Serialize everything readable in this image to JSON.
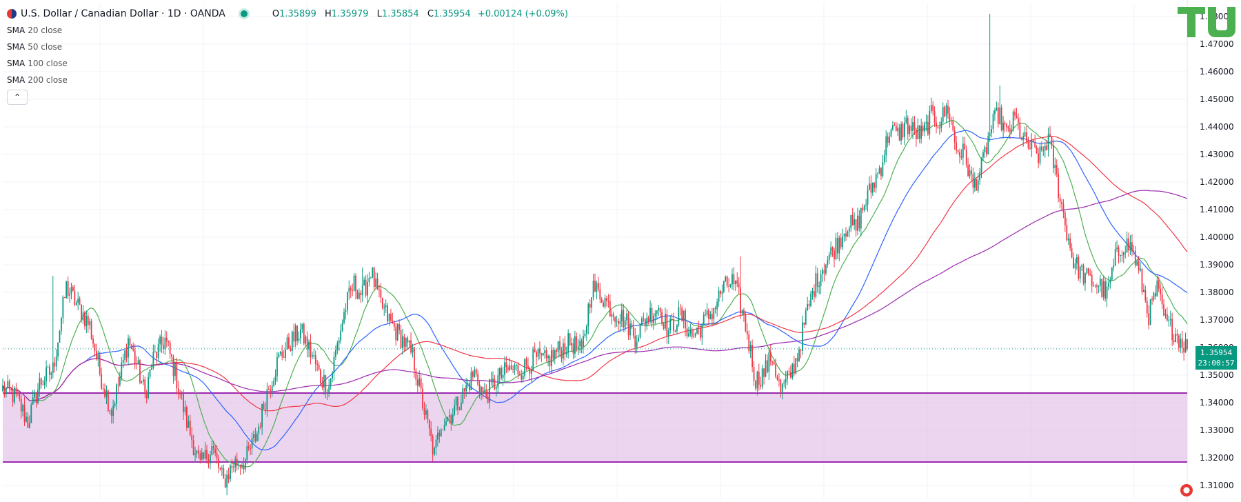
{
  "header": {
    "symbol_title": "U.S. Dollar / Canadian Dollar · 1D · OANDA",
    "ohlc": {
      "o_label": "O",
      "o": "1.35899",
      "h_label": "H",
      "h": "1.35979",
      "l_label": "L",
      "l": "1.35854",
      "c_label": "C",
      "c": "1.35954",
      "change": "+0.00124 (+0.09%)"
    }
  },
  "indicators": [
    {
      "name": "SMA",
      "params": "20 close",
      "color": "#4caf50"
    },
    {
      "name": "SMA",
      "params": "50 close",
      "color": "#2962ff"
    },
    {
      "name": "SMA",
      "params": "100 close",
      "color": "#f23645"
    },
    {
      "name": "SMA",
      "params": "200 close",
      "color": "#9c27b0"
    }
  ],
  "colors": {
    "up": "#089981",
    "down": "#f23645",
    "zone": "#9c27b0"
  },
  "last_price": {
    "value": "1.35954",
    "countdown": "23:00:57"
  },
  "icons": [
    "chevron-up-icon",
    "tv-logo-icon",
    "flag-icon"
  ],
  "chart_data": {
    "type": "candlestick",
    "ylim": [
      1.305,
      1.485
    ],
    "yticks": [
      "1.31000",
      "1.32000",
      "1.33000",
      "1.34000",
      "1.35000",
      "1.36000",
      "1.37000",
      "1.38000",
      "1.39000",
      "1.40000",
      "1.41000",
      "1.42000",
      "1.43000",
      "1.44000",
      "1.45000",
      "1.46000",
      "1.47000",
      "1.48000"
    ],
    "close_path": [
      [
        0,
        1.345
      ],
      [
        8,
        1.342
      ],
      [
        15,
        1.333
      ],
      [
        22,
        1.347
      ],
      [
        30,
        1.352
      ],
      [
        38,
        1.382
      ],
      [
        45,
        1.375
      ],
      [
        52,
        1.368
      ],
      [
        58,
        1.351
      ],
      [
        65,
        1.337
      ],
      [
        70,
        1.349
      ],
      [
        75,
        1.363
      ],
      [
        80,
        1.354
      ],
      [
        85,
        1.343
      ],
      [
        90,
        1.356
      ],
      [
        97,
        1.363
      ],
      [
        103,
        1.351
      ],
      [
        110,
        1.333
      ],
      [
        118,
        1.317
      ],
      [
        125,
        1.324
      ],
      [
        132,
        1.311
      ],
      [
        138,
        1.318
      ],
      [
        145,
        1.319
      ],
      [
        152,
        1.329
      ],
      [
        158,
        1.344
      ],
      [
        165,
        1.356
      ],
      [
        172,
        1.362
      ],
      [
        178,
        1.366
      ],
      [
        185,
        1.357
      ],
      [
        190,
        1.349
      ],
      [
        195,
        1.346
      ],
      [
        200,
        1.361
      ],
      [
        205,
        1.375
      ],
      [
        210,
        1.383
      ],
      [
        215,
        1.379
      ],
      [
        220,
        1.388
      ],
      [
        225,
        1.377
      ],
      [
        230,
        1.371
      ],
      [
        235,
        1.366
      ],
      [
        240,
        1.362
      ],
      [
        245,
        1.357
      ],
      [
        252,
        1.337
      ],
      [
        258,
        1.321
      ],
      [
        262,
        1.333
      ],
      [
        268,
        1.336
      ],
      [
        275,
        1.343
      ],
      [
        282,
        1.351
      ],
      [
        288,
        1.342
      ],
      [
        295,
        1.348
      ],
      [
        302,
        1.352
      ],
      [
        310,
        1.352
      ],
      [
        318,
        1.356
      ],
      [
        325,
        1.355
      ],
      [
        332,
        1.359
      ],
      [
        340,
        1.362
      ],
      [
        346,
        1.358
      ],
      [
        352,
        1.382
      ],
      [
        358,
        1.379
      ],
      [
        365,
        1.373
      ],
      [
        372,
        1.37
      ],
      [
        378,
        1.364
      ],
      [
        385,
        1.371
      ],
      [
        392,
        1.375
      ],
      [
        398,
        1.366
      ],
      [
        405,
        1.372
      ],
      [
        412,
        1.364
      ],
      [
        418,
        1.368
      ],
      [
        425,
        1.374
      ],
      [
        430,
        1.381
      ],
      [
        436,
        1.384
      ],
      [
        440,
        1.378
      ],
      [
        445,
        1.365
      ],
      [
        450,
        1.348
      ],
      [
        455,
        1.351
      ],
      [
        460,
        1.357
      ],
      [
        465,
        1.344
      ],
      [
        470,
        1.349
      ],
      [
        475,
        1.357
      ],
      [
        480,
        1.371
      ],
      [
        485,
        1.382
      ],
      [
        490,
        1.389
      ],
      [
        495,
        1.394
      ],
      [
        500,
        1.399
      ],
      [
        505,
        1.405
      ],
      [
        510,
        1.403
      ],
      [
        515,
        1.412
      ],
      [
        520,
        1.419
      ],
      [
        525,
        1.426
      ],
      [
        530,
        1.439
      ],
      [
        535,
        1.437
      ],
      [
        540,
        1.441
      ],
      [
        545,
        1.438
      ],
      [
        550,
        1.437
      ],
      [
        555,
        1.444
      ],
      [
        560,
        1.442
      ],
      [
        565,
        1.447
      ],
      [
        570,
        1.432
      ],
      [
        575,
        1.43
      ],
      [
        580,
        1.418
      ],
      [
        585,
        1.425
      ],
      [
        590,
        1.438
      ],
      [
        595,
        1.445
      ],
      [
        600,
        1.437
      ],
      [
        605,
        1.443
      ],
      [
        610,
        1.435
      ],
      [
        615,
        1.432
      ],
      [
        620,
        1.429
      ],
      [
        625,
        1.436
      ],
      [
        630,
        1.421
      ],
      [
        635,
        1.405
      ],
      [
        640,
        1.391
      ],
      [
        645,
        1.387
      ],
      [
        650,
        1.384
      ],
      [
        655,
        1.383
      ],
      [
        660,
        1.379
      ],
      [
        665,
        1.392
      ],
      [
        670,
        1.398
      ],
      [
        675,
        1.396
      ],
      [
        680,
        1.385
      ],
      [
        685,
        1.372
      ],
      [
        690,
        1.381
      ],
      [
        695,
        1.369
      ],
      [
        700,
        1.366
      ],
      [
        705,
        1.362
      ],
      [
        708,
        1.36
      ]
    ],
    "spikes": [
      [
        590,
        1.481,
        1.43
      ],
      [
        596,
        1.455,
        1.43
      ],
      [
        441,
        1.393,
        1.372
      ],
      [
        30,
        1.386,
        1.361
      ],
      [
        215,
        1.389,
        1.377
      ]
    ],
    "zone": {
      "top": 1.3435,
      "bottom": 1.3185
    },
    "last_price": 1.35954,
    "series": [
      {
        "name": "SMA 20 close",
        "color": "#4caf50"
      },
      {
        "name": "SMA 50 close",
        "color": "#2962ff"
      },
      {
        "name": "SMA 100 close",
        "color": "#f23645"
      },
      {
        "name": "SMA 200 close",
        "color": "#9c27b0"
      }
    ]
  }
}
